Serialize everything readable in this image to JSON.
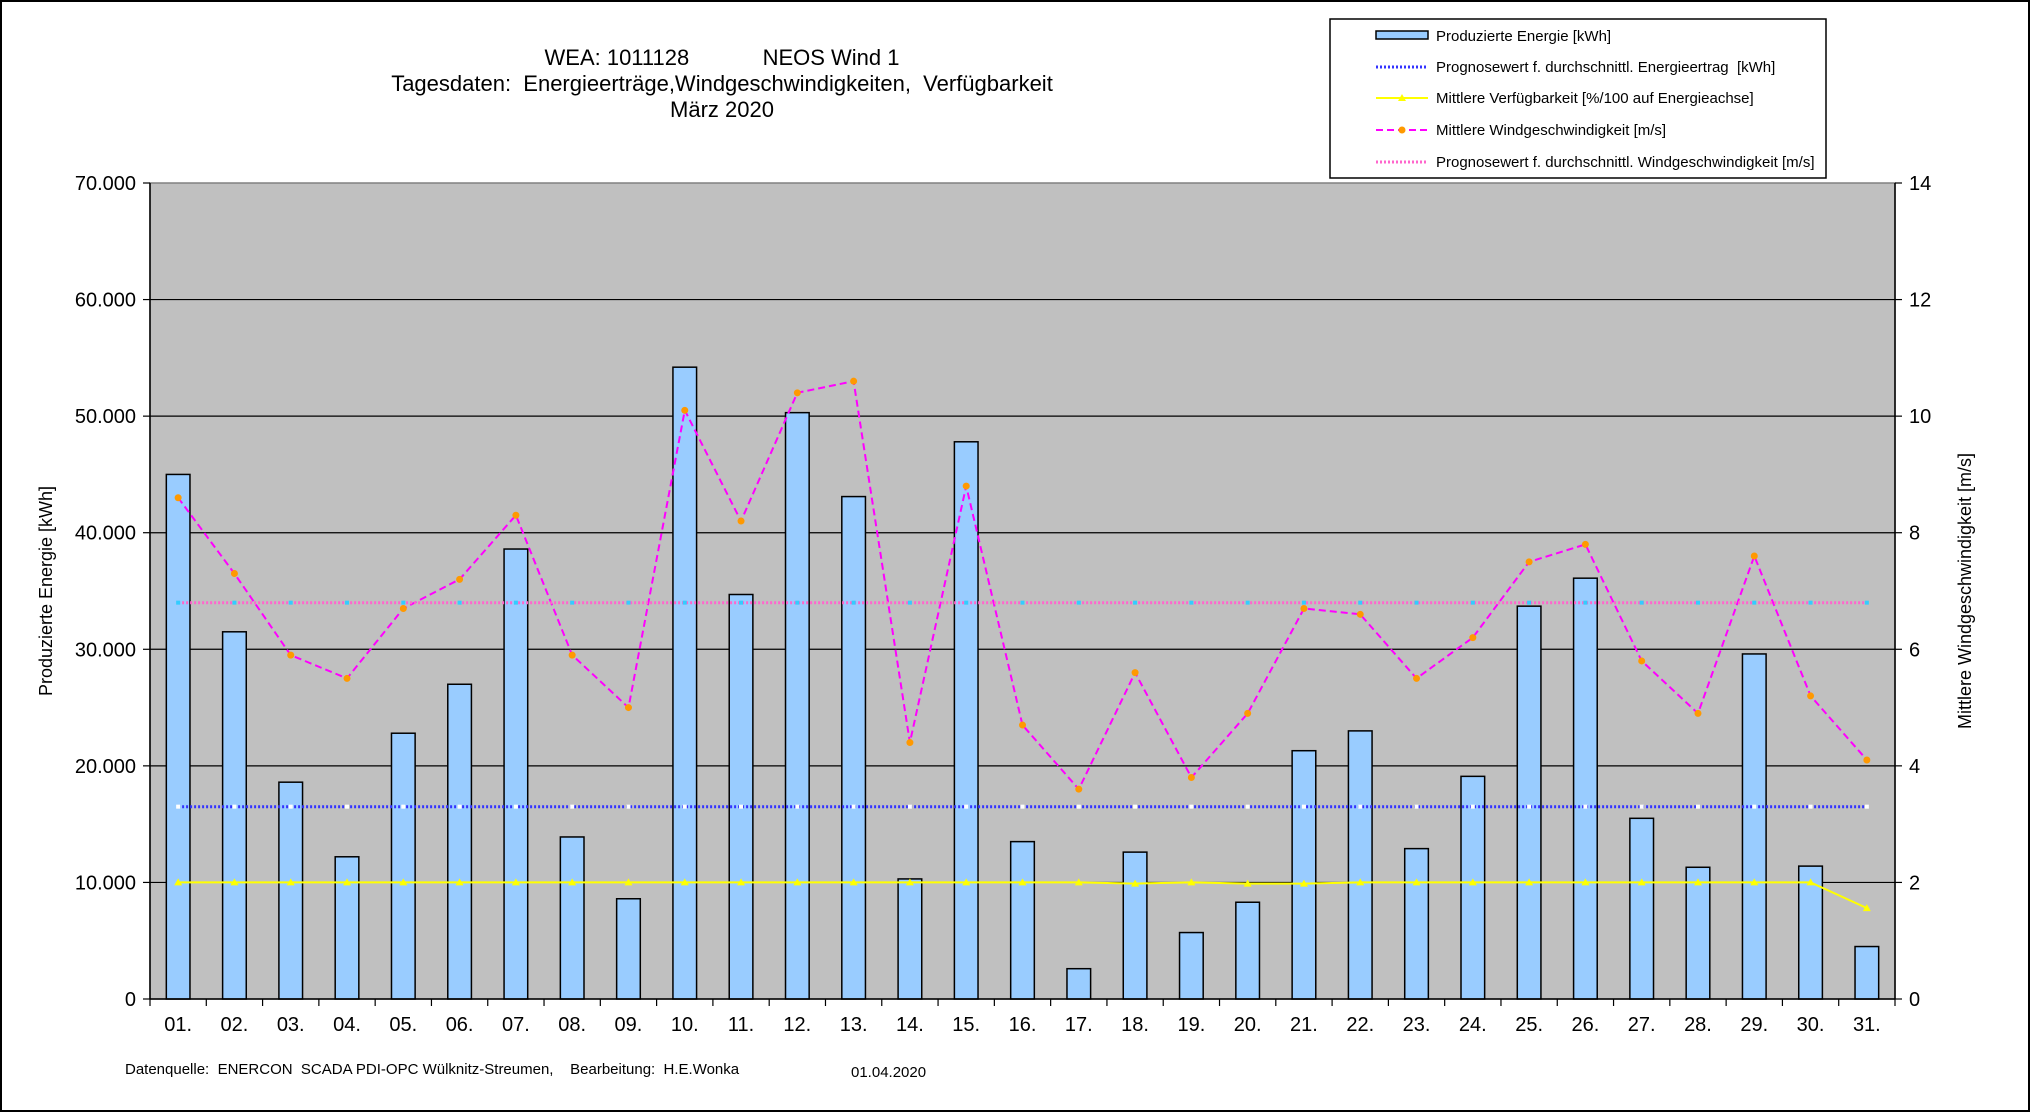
{
  "chart_data": {
    "type": "bar",
    "title_lines": [
      "WEA: 1011128            NEOS Wind 1",
      "Tagesdaten:  Energieerträge,Windgeschwindigkeiten,  Verfügbarkeit",
      "März 2020"
    ],
    "ylabel_left": "Produzierte Energie [kWh]",
    "ylabel_right": "Mittlere Windgeschwindigkeit [m/s]",
    "xlabel": "",
    "ylim_left": [
      0,
      70000
    ],
    "ylim_right": [
      0,
      14
    ],
    "yticks_left": [
      "0",
      "10.000",
      "20.000",
      "30.000",
      "40.000",
      "50.000",
      "60.000",
      "70.000"
    ],
    "yticks_right": [
      "0",
      "2",
      "4",
      "6",
      "8",
      "10",
      "12",
      "14"
    ],
    "grid": true,
    "legend_position": "top-right",
    "categories": [
      "01.",
      "02.",
      "03.",
      "04.",
      "05.",
      "06.",
      "07.",
      "08.",
      "09.",
      "10.",
      "11.",
      "12.",
      "13.",
      "14.",
      "15.",
      "16.",
      "17.",
      "18.",
      "19.",
      "20.",
      "21.",
      "22.",
      "23.",
      "24.",
      "25.",
      "26.",
      "27.",
      "28.",
      "29.",
      "30.",
      "31."
    ],
    "series": [
      {
        "name": "Produzierte Energie [kWh]",
        "kind": "bar",
        "axis": "left",
        "color": "#99ccff",
        "values": [
          45000,
          31500,
          18600,
          12200,
          22800,
          27000,
          38600,
          13900,
          8600,
          54200,
          34700,
          50300,
          43100,
          10300,
          47800,
          13500,
          2600,
          12600,
          5700,
          8300,
          21300,
          23000,
          12900,
          19100,
          33700,
          36100,
          15500,
          11300,
          29600,
          11400,
          4500
        ]
      },
      {
        "name": "Prognosewert f. durchschnittl. Energieertrag  [kWh]",
        "kind": "line",
        "axis": "left",
        "color": "#3333ff",
        "constant": 16500
      },
      {
        "name": "Mittlere Verfügbarkeit [%/100 auf Energieachse]",
        "kind": "line",
        "axis": "left",
        "color": "#ffff00",
        "values": [
          10000,
          10000,
          10000,
          10000,
          10000,
          10000,
          10000,
          10000,
          10000,
          10000,
          10000,
          10000,
          10000,
          10000,
          10000,
          10000,
          10000,
          9900,
          10000,
          9900,
          9900,
          10000,
          10000,
          10000,
          10000,
          10000,
          10000,
          10000,
          10000,
          10000,
          7800
        ]
      },
      {
        "name": "Mittlere Windgeschwindigkeit [m/s]",
        "kind": "line",
        "axis": "right",
        "color": "#ff00ff",
        "marker_color": "#ff9900",
        "values": [
          8.6,
          7.3,
          5.9,
          5.5,
          6.7,
          7.2,
          8.3,
          5.9,
          5.0,
          10.1,
          8.2,
          10.4,
          10.6,
          4.4,
          8.8,
          4.7,
          3.6,
          5.6,
          3.8,
          4.9,
          6.7,
          6.6,
          5.5,
          6.2,
          7.5,
          7.8,
          5.8,
          4.9,
          7.6,
          5.2,
          4.1
        ]
      },
      {
        "name": "Prognosewert f. durchschnittl. Windgeschwindigkeit [m/s]",
        "kind": "line",
        "axis": "right",
        "color": "#ff66cc",
        "constant": 6.8
      }
    ]
  },
  "footer": {
    "source": "Datenquelle:  ENERCON  SCADA PDI-OPC Wülknitz-Streumen,    Bearbeitung:  H.E.Wonka",
    "date": "01.04.2020"
  }
}
